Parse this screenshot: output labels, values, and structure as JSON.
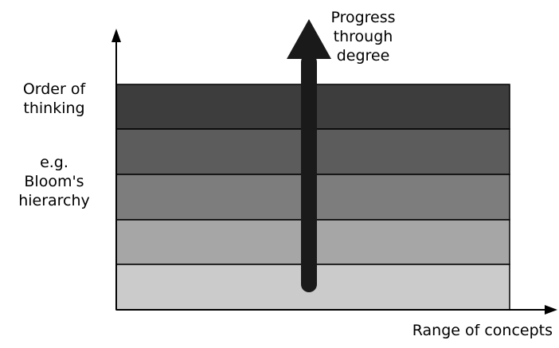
{
  "labels": {
    "y_title": "Order of thinking",
    "y_title_line1": "Order of",
    "y_title_line2": "thinking",
    "y_note_line1": "e.g.",
    "y_note_line2": "Bloom's",
    "y_note_line3": "hierarchy",
    "x_title": "Range of concepts",
    "progress_line1": "Progress",
    "progress_line2": "through",
    "progress_line3": "degree"
  },
  "bands": [
    {
      "level": 5,
      "color": "#3d3d3d"
    },
    {
      "level": 4,
      "color": "#5c5c5c"
    },
    {
      "level": 3,
      "color": "#7d7d7d"
    },
    {
      "level": 2,
      "color": "#a6a6a6"
    },
    {
      "level": 1,
      "color": "#cbcbcb"
    }
  ],
  "colors": {
    "axis": "#000000",
    "band_border": "#000000",
    "progress_arrow": "#1a1a1a",
    "text": "#000000"
  }
}
